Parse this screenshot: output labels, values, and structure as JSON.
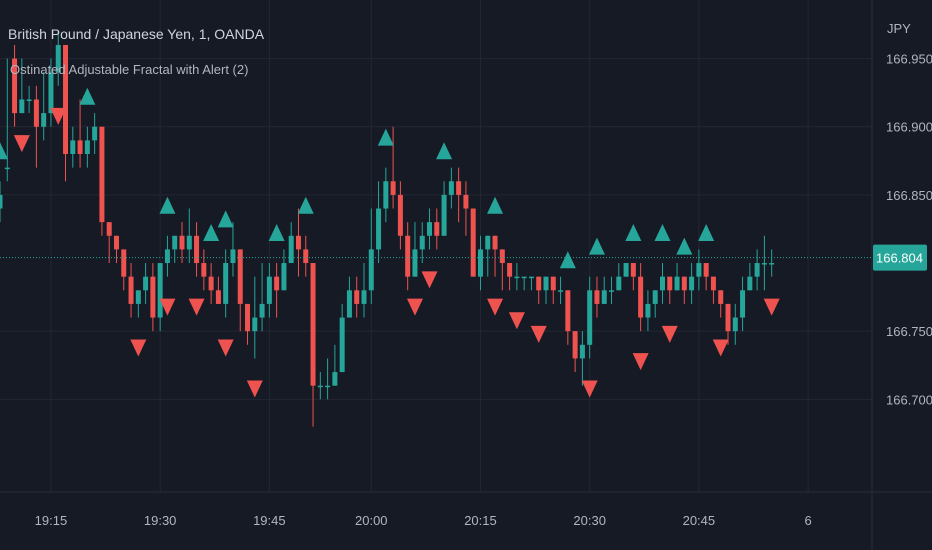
{
  "header": {
    "symbol_title": "British Pound / Japanese Yen, 1, OANDA",
    "indicator_title": "Ostinated Adjustable Fractal with Alert (2)",
    "currency": "JPY"
  },
  "colors": {
    "background": "#161a25",
    "grid": "#232733",
    "up": "#26a69a",
    "down": "#ef5350",
    "text": "#b2b5be"
  },
  "chart_data": {
    "type": "candlestick",
    "y_axis": {
      "ticks": [
        166.95,
        166.9,
        166.85,
        166.75,
        166.7
      ],
      "tick_labels": [
        "166.950",
        "166.900",
        "166.850",
        "166.750",
        "166.700"
      ],
      "ylim": [
        166.632,
        166.993
      ]
    },
    "x_axis": {
      "tick_labels": [
        "19:15",
        "19:30",
        "19:45",
        "20:00",
        "20:15",
        "20:30",
        "20:45",
        "6"
      ],
      "tick_indices": [
        7,
        22,
        37,
        51,
        66,
        81,
        96,
        111
      ]
    },
    "last_price": {
      "value": 166.804,
      "label": "166.804"
    },
    "candles": [
      [
        166.84,
        166.85,
        166.86,
        166.83
      ],
      [
        166.87,
        166.87,
        166.95,
        166.86
      ],
      [
        166.95,
        166.91,
        166.96,
        166.9
      ],
      [
        166.91,
        166.92,
        166.95,
        166.91
      ],
      [
        166.92,
        166.92,
        166.93,
        166.91
      ],
      [
        166.92,
        166.9,
        166.93,
        166.87
      ],
      [
        166.9,
        166.91,
        166.94,
        166.89
      ],
      [
        166.91,
        166.94,
        166.95,
        166.9
      ],
      [
        166.94,
        166.96,
        166.97,
        166.93
      ],
      [
        166.96,
        166.88,
        166.96,
        166.86
      ],
      [
        166.88,
        166.89,
        166.9,
        166.87
      ],
      [
        166.89,
        166.88,
        166.92,
        166.87
      ],
      [
        166.88,
        166.89,
        166.9,
        166.87
      ],
      [
        166.89,
        166.9,
        166.91,
        166.88
      ],
      [
        166.9,
        166.83,
        166.9,
        166.82
      ],
      [
        166.83,
        166.82,
        166.83,
        166.8
      ],
      [
        166.82,
        166.81,
        166.82,
        166.8
      ],
      [
        166.81,
        166.79,
        166.81,
        166.78
      ],
      [
        166.79,
        166.77,
        166.8,
        166.76
      ],
      [
        166.77,
        166.78,
        166.78,
        166.76
      ],
      [
        166.78,
        166.79,
        166.8,
        166.77
      ],
      [
        166.79,
        166.76,
        166.8,
        166.75
      ],
      [
        166.76,
        166.8,
        166.8,
        166.75
      ],
      [
        166.8,
        166.81,
        166.82,
        166.79
      ],
      [
        166.81,
        166.82,
        166.82,
        166.8
      ],
      [
        166.82,
        166.81,
        166.83,
        166.8
      ],
      [
        166.81,
        166.82,
        166.84,
        166.8
      ],
      [
        166.82,
        166.8,
        166.83,
        166.79
      ],
      [
        166.8,
        166.79,
        166.81,
        166.78
      ],
      [
        166.79,
        166.78,
        166.8,
        166.77
      ],
      [
        166.78,
        166.77,
        166.79,
        166.77
      ],
      [
        166.77,
        166.8,
        166.81,
        166.76
      ],
      [
        166.8,
        166.81,
        166.83,
        166.79
      ],
      [
        166.81,
        166.77,
        166.81,
        166.75
      ],
      [
        166.77,
        166.75,
        166.77,
        166.74
      ],
      [
        166.75,
        166.76,
        166.79,
        166.73
      ],
      [
        166.76,
        166.77,
        166.8,
        166.75
      ],
      [
        166.77,
        166.79,
        166.8,
        166.76
      ],
      [
        166.79,
        166.78,
        166.8,
        166.76
      ],
      [
        166.78,
        166.8,
        166.81,
        166.78
      ],
      [
        166.8,
        166.82,
        166.83,
        166.8
      ],
      [
        166.82,
        166.81,
        166.84,
        166.79
      ],
      [
        166.81,
        166.8,
        166.82,
        166.79
      ],
      [
        166.8,
        166.71,
        166.8,
        166.68
      ],
      [
        166.71,
        166.71,
        166.72,
        166.7
      ],
      [
        166.71,
        166.71,
        166.73,
        166.7
      ],
      [
        166.71,
        166.72,
        166.74,
        166.71
      ],
      [
        166.72,
        166.76,
        166.77,
        166.72
      ],
      [
        166.76,
        166.78,
        166.79,
        166.76
      ],
      [
        166.78,
        166.77,
        166.79,
        166.76
      ],
      [
        166.77,
        166.78,
        166.8,
        166.76
      ],
      [
        166.78,
        166.81,
        166.84,
        166.77
      ],
      [
        166.81,
        166.84,
        166.86,
        166.8
      ],
      [
        166.84,
        166.86,
        166.87,
        166.83
      ],
      [
        166.86,
        166.85,
        166.9,
        166.84
      ],
      [
        166.85,
        166.82,
        166.86,
        166.81
      ],
      [
        166.82,
        166.79,
        166.83,
        166.78
      ],
      [
        166.79,
        166.81,
        166.83,
        166.79
      ],
      [
        166.81,
        166.82,
        166.83,
        166.8
      ],
      [
        166.82,
        166.83,
        166.84,
        166.81
      ],
      [
        166.83,
        166.82,
        166.84,
        166.81
      ],
      [
        166.82,
        166.85,
        166.86,
        166.82
      ],
      [
        166.85,
        166.86,
        166.87,
        166.84
      ],
      [
        166.86,
        166.85,
        166.87,
        166.83
      ],
      [
        166.85,
        166.84,
        166.86,
        166.82
      ],
      [
        166.84,
        166.79,
        166.84,
        166.79
      ],
      [
        166.79,
        166.81,
        166.82,
        166.78
      ],
      [
        166.81,
        166.82,
        166.82,
        166.79
      ],
      [
        166.82,
        166.81,
        166.82,
        166.79
      ],
      [
        166.81,
        166.8,
        166.81,
        166.78
      ],
      [
        166.8,
        166.79,
        166.8,
        166.78
      ],
      [
        166.79,
        166.79,
        166.8,
        166.78
      ],
      [
        166.79,
        166.79,
        166.79,
        166.78
      ],
      [
        166.79,
        166.79,
        166.79,
        166.78
      ],
      [
        166.79,
        166.78,
        166.79,
        166.77
      ],
      [
        166.78,
        166.79,
        166.79,
        166.77
      ],
      [
        166.79,
        166.78,
        166.79,
        166.77
      ],
      [
        166.78,
        166.78,
        166.79,
        166.77
      ],
      [
        166.78,
        166.75,
        166.78,
        166.74
      ],
      [
        166.75,
        166.73,
        166.75,
        166.72
      ],
      [
        166.73,
        166.74,
        166.75,
        166.71
      ],
      [
        166.74,
        166.78,
        166.79,
        166.73
      ],
      [
        166.78,
        166.77,
        166.79,
        166.76
      ],
      [
        166.77,
        166.78,
        166.79,
        166.77
      ],
      [
        166.78,
        166.78,
        166.79,
        166.77
      ],
      [
        166.78,
        166.79,
        166.8,
        166.78
      ],
      [
        166.79,
        166.8,
        166.8,
        166.79
      ],
      [
        166.8,
        166.79,
        166.8,
        166.78
      ],
      [
        166.79,
        166.76,
        166.8,
        166.75
      ],
      [
        166.76,
        166.77,
        166.78,
        166.75
      ],
      [
        166.77,
        166.78,
        166.78,
        166.76
      ],
      [
        166.78,
        166.79,
        166.8,
        166.77
      ],
      [
        166.79,
        166.78,
        166.79,
        166.77
      ],
      [
        166.78,
        166.79,
        166.8,
        166.78
      ],
      [
        166.79,
        166.78,
        166.79,
        166.77
      ],
      [
        166.78,
        166.79,
        166.8,
        166.77
      ],
      [
        166.79,
        166.8,
        166.81,
        166.78
      ],
      [
        166.8,
        166.79,
        166.8,
        166.78
      ],
      [
        166.79,
        166.78,
        166.79,
        166.77
      ],
      [
        166.78,
        166.77,
        166.78,
        166.76
      ],
      [
        166.77,
        166.75,
        166.77,
        166.74
      ],
      [
        166.75,
        166.76,
        166.77,
        166.74
      ],
      [
        166.76,
        166.78,
        166.79,
        166.75
      ],
      [
        166.78,
        166.79,
        166.8,
        166.78
      ],
      [
        166.79,
        166.8,
        166.81,
        166.78
      ],
      [
        166.8,
        166.8,
        166.82,
        166.78
      ],
      [
        166.8,
        166.8,
        166.81,
        166.79
      ]
    ],
    "fractals_up_indices": [
      0,
      12,
      23,
      29,
      31,
      38,
      42,
      53,
      61,
      68,
      78,
      82,
      87,
      91,
      94,
      97
    ],
    "fractals_down_indices": [
      3,
      8,
      19,
      23,
      27,
      31,
      35,
      57,
      59,
      68,
      71,
      74,
      81,
      88,
      92,
      99,
      106
    ]
  }
}
